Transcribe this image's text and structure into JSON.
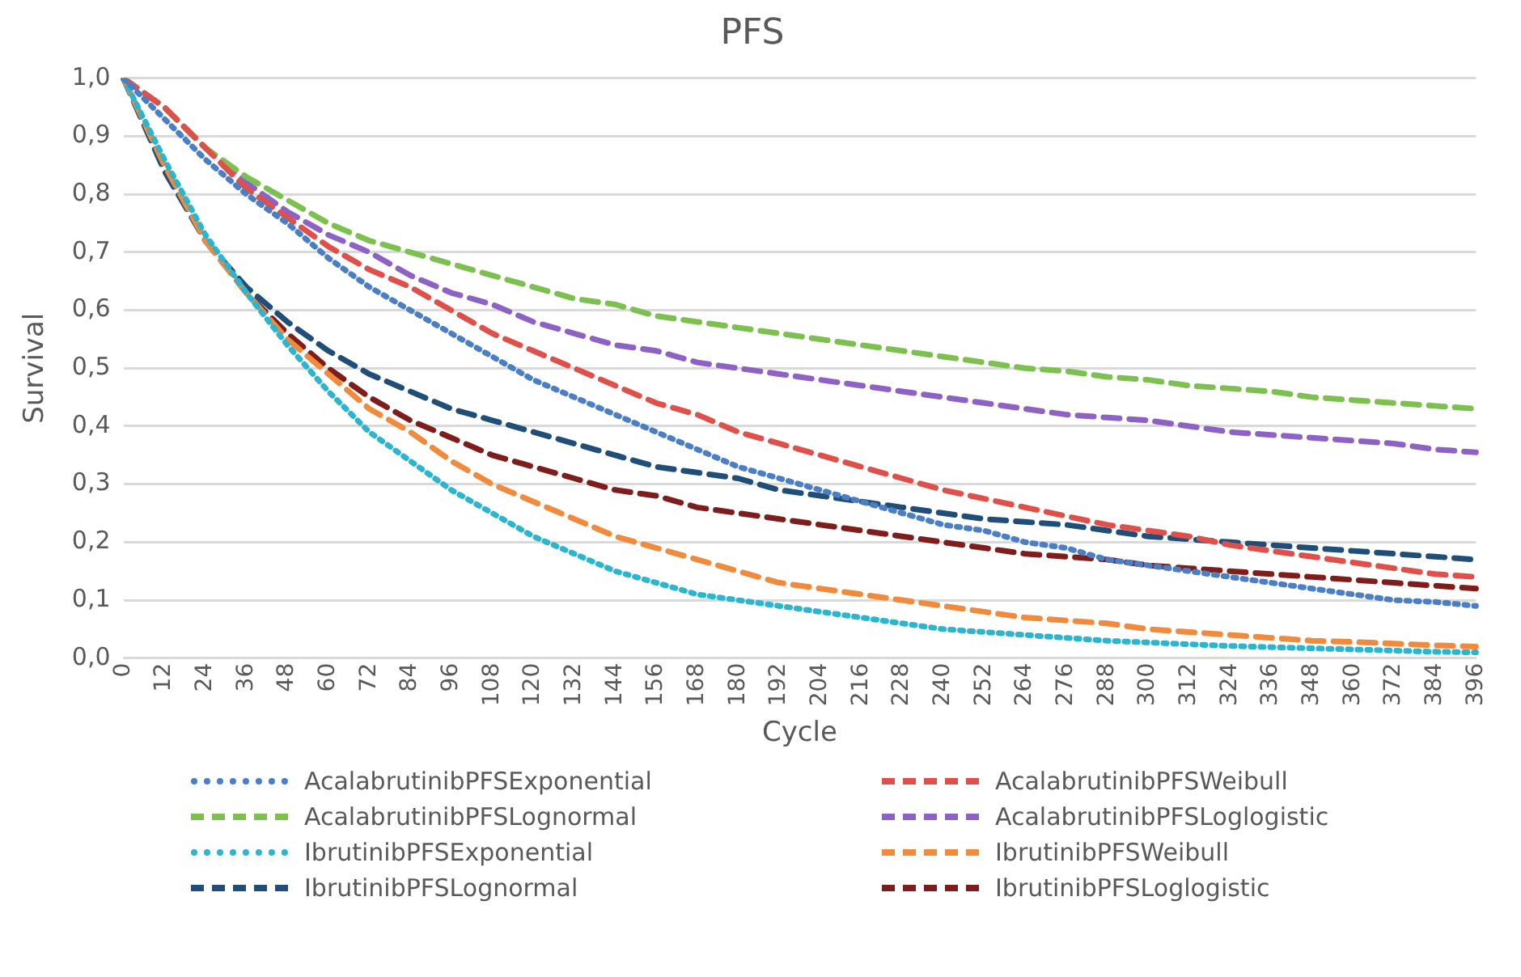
{
  "chart_data": {
    "type": "line",
    "title": "PFS",
    "xlabel": "Cycle",
    "ylabel": "Survival",
    "categories": [
      "0",
      "12",
      "24",
      "36",
      "48",
      "60",
      "72",
      "84",
      "96",
      "108",
      "120",
      "132",
      "144",
      "156",
      "168",
      "180",
      "192",
      "204",
      "216",
      "228",
      "240",
      "252",
      "264",
      "276",
      "288",
      "300",
      "312",
      "324",
      "336",
      "348",
      "360",
      "372",
      "384",
      "396"
    ],
    "ylim": [
      0,
      1
    ],
    "yticks": [
      {
        "value": 0,
        "label": "0,0"
      },
      {
        "value": 0.1,
        "label": "0,1"
      },
      {
        "value": 0.2,
        "label": "0,2"
      },
      {
        "value": 0.3,
        "label": "0,3"
      },
      {
        "value": 0.4,
        "label": "0,4"
      },
      {
        "value": 0.5,
        "label": "0,5"
      },
      {
        "value": 0.6,
        "label": "0,6"
      },
      {
        "value": 0.7,
        "label": "0,7"
      },
      {
        "value": 0.8,
        "label": "0,8"
      },
      {
        "value": 0.9,
        "label": "0,9"
      },
      {
        "value": 1,
        "label": "1,0"
      }
    ],
    "grid": "y",
    "legend": "bottom",
    "marker": "none",
    "series": [
      {
        "name": "AcalabrutinibPFSExponential",
        "color": "#4a7fc6",
        "line_style": "dotted",
        "values": [
          1,
          0.93,
          0.86,
          0.8,
          0.75,
          0.69,
          0.64,
          0.6,
          0.56,
          0.52,
          0.48,
          0.45,
          0.42,
          0.39,
          0.36,
          0.33,
          0.31,
          0.29,
          0.27,
          0.25,
          0.23,
          0.22,
          0.2,
          0.19,
          0.17,
          0.16,
          0.15,
          0.14,
          0.13,
          0.12,
          0.11,
          0.1,
          0.097,
          0.09
        ]
      },
      {
        "name": "AcalabrutinibPFSWeibull",
        "color": "#e0504a",
        "line_style": "dashed",
        "values": [
          1,
          0.95,
          0.88,
          0.81,
          0.76,
          0.71,
          0.67,
          0.64,
          0.6,
          0.56,
          0.53,
          0.5,
          0.47,
          0.44,
          0.42,
          0.39,
          0.37,
          0.35,
          0.33,
          0.31,
          0.29,
          0.275,
          0.26,
          0.245,
          0.23,
          0.22,
          0.21,
          0.195,
          0.185,
          0.175,
          0.165,
          0.155,
          0.145,
          0.14
        ]
      },
      {
        "name": "AcalabrutinibPFSLognormal",
        "color": "#7cc04f",
        "line_style": "dashed",
        "values": [
          1,
          0.95,
          0.88,
          0.83,
          0.79,
          0.75,
          0.72,
          0.7,
          0.68,
          0.66,
          0.64,
          0.62,
          0.61,
          0.59,
          0.58,
          0.57,
          0.56,
          0.55,
          0.54,
          0.53,
          0.52,
          0.51,
          0.5,
          0.495,
          0.485,
          0.48,
          0.47,
          0.465,
          0.46,
          0.45,
          0.445,
          0.44,
          0.435,
          0.43
        ]
      },
      {
        "name": "AcalabrutinibPFSLoglogistic",
        "color": "#8e62c4",
        "line_style": "dashed",
        "values": [
          1,
          0.95,
          0.88,
          0.82,
          0.77,
          0.73,
          0.7,
          0.66,
          0.63,
          0.61,
          0.58,
          0.56,
          0.54,
          0.53,
          0.51,
          0.5,
          0.49,
          0.48,
          0.47,
          0.46,
          0.45,
          0.44,
          0.43,
          0.42,
          0.415,
          0.41,
          0.4,
          0.39,
          0.385,
          0.38,
          0.375,
          0.37,
          0.36,
          0.355
        ]
      },
      {
        "name": "IbrutinibPFSExponential",
        "color": "#2bb5cf",
        "line_style": "dotted",
        "values": [
          1,
          0.86,
          0.73,
          0.63,
          0.54,
          0.46,
          0.39,
          0.34,
          0.29,
          0.25,
          0.21,
          0.18,
          0.15,
          0.13,
          0.11,
          0.1,
          0.09,
          0.08,
          0.07,
          0.06,
          0.05,
          0.045,
          0.04,
          0.035,
          0.03,
          0.027,
          0.024,
          0.021,
          0.019,
          0.017,
          0.015,
          0.013,
          0.011,
          0.01
        ]
      },
      {
        "name": "IbrutinibPFSWeibull",
        "color": "#f08a3c",
        "line_style": "dashed",
        "values": [
          1,
          0.85,
          0.72,
          0.63,
          0.55,
          0.49,
          0.43,
          0.39,
          0.34,
          0.3,
          0.27,
          0.24,
          0.21,
          0.19,
          0.17,
          0.15,
          0.13,
          0.12,
          0.11,
          0.1,
          0.09,
          0.08,
          0.07,
          0.065,
          0.06,
          0.05,
          0.045,
          0.04,
          0.035,
          0.03,
          0.028,
          0.025,
          0.022,
          0.02
        ]
      },
      {
        "name": "IbrutinibPFSLognormal",
        "color": "#1f4e79",
        "line_style": "dashed",
        "values": [
          1,
          0.84,
          0.72,
          0.64,
          0.58,
          0.53,
          0.49,
          0.46,
          0.43,
          0.41,
          0.39,
          0.37,
          0.35,
          0.33,
          0.32,
          0.31,
          0.29,
          0.28,
          0.27,
          0.26,
          0.25,
          0.24,
          0.235,
          0.23,
          0.22,
          0.21,
          0.205,
          0.2,
          0.195,
          0.19,
          0.185,
          0.18,
          0.175,
          0.17
        ]
      },
      {
        "name": "IbrutinibPFSLoglogistic",
        "color": "#7f1d1d",
        "line_style": "dashed",
        "values": [
          1,
          0.85,
          0.72,
          0.63,
          0.56,
          0.5,
          0.45,
          0.41,
          0.38,
          0.35,
          0.33,
          0.31,
          0.29,
          0.28,
          0.26,
          0.25,
          0.24,
          0.23,
          0.22,
          0.21,
          0.2,
          0.19,
          0.18,
          0.175,
          0.17,
          0.16,
          0.155,
          0.15,
          0.145,
          0.14,
          0.135,
          0.13,
          0.125,
          0.12
        ]
      }
    ]
  }
}
